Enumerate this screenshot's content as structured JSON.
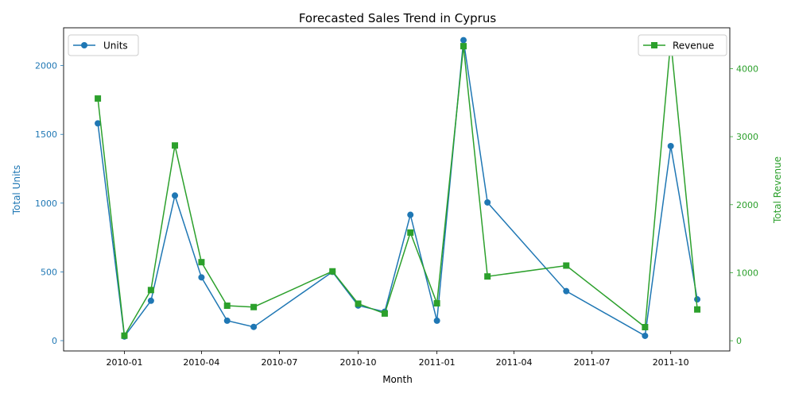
{
  "chart_data": {
    "type": "line",
    "title": "Forecasted Sales Trend in Cyprus",
    "xlabel": "Month",
    "ylabel_left": "Total Units",
    "ylabel_right": "Total Revenue",
    "x_ticks": [
      "2010-01",
      "2010-04",
      "2010-07",
      "2010-10",
      "2011-01",
      "2011-04",
      "2011-07",
      "2011-10"
    ],
    "y_left_ticks": [
      "0",
      "500",
      "1000",
      "1500",
      "2000"
    ],
    "y_right_ticks": [
      "0",
      "1000",
      "2000",
      "3000",
      "4000"
    ],
    "x": [
      "2009-12-01",
      "2010-01-01",
      "2010-02-01",
      "2010-03-01",
      "2010-04-01",
      "2010-05-01",
      "2010-06-01",
      "2010-09-01",
      "2010-10-01",
      "2010-11-01",
      "2010-12-01",
      "2011-01-01",
      "2011-02-01",
      "2011-03-01",
      "2011-06-01",
      "2011-09-01",
      "2011-10-01",
      "2011-11-01"
    ],
    "series": [
      {
        "name": "Units",
        "axis": "left",
        "color": "#1f77b4",
        "marker": "circle",
        "values": [
          1580,
          30,
          290,
          1055,
          460,
          145,
          100,
          500,
          255,
          210,
          915,
          145,
          2185,
          1005,
          360,
          35,
          1415,
          300
        ]
      },
      {
        "name": "Revenue",
        "axis": "right",
        "color": "#2ca02c",
        "marker": "square",
        "values": [
          3560,
          75,
          745,
          2870,
          1155,
          515,
          495,
          1020,
          545,
          400,
          1590,
          550,
          4330,
          945,
          1105,
          200,
          4410,
          460
        ]
      }
    ],
    "ylim_left": [
      -75,
      2275
    ],
    "ylim_right": [
      -150,
      4600
    ],
    "legend_left": "top-left",
    "legend_right": "top-right",
    "grid": false
  }
}
